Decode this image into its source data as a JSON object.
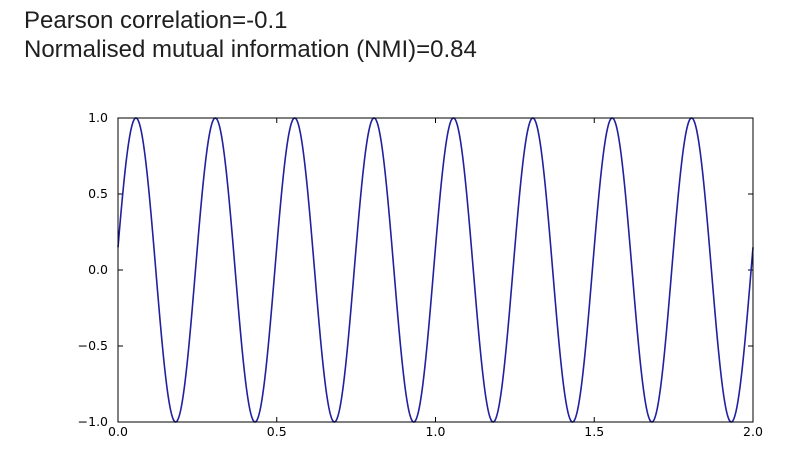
{
  "header": {
    "line1": "Pearson correlation=-0.1",
    "line2": "Normalised mutual information (NMI)=0.84"
  },
  "chart_data": {
    "type": "line",
    "title": "",
    "xlabel": "",
    "ylabel": "",
    "xlim": [
      0.0,
      2.0
    ],
    "ylim": [
      -1.0,
      1.0
    ],
    "grid": false,
    "legend": "none",
    "x_ticks": [
      0.0,
      0.5,
      1.0,
      1.5,
      2.0
    ],
    "x_tick_labels": [
      "0.0",
      "0.5",
      "1.0",
      "1.5",
      "2.0"
    ],
    "y_ticks": [
      1.0,
      0.5,
      0.0,
      -0.5,
      -1.0
    ],
    "y_tick_labels": [
      "1.0",
      "0.5",
      "0.0",
      "−0.5",
      "−1.0"
    ],
    "series": [
      {
        "function": "sin",
        "amplitude": 1.0,
        "frequency_cycles_per_unit": 4.0,
        "phase_shift": 0.15,
        "sample_step": 0.002,
        "color": "#2020a0"
      }
    ]
  },
  "colors": {
    "line": "#2020a0",
    "axes": "#000000",
    "text": "#1f1f1f"
  }
}
